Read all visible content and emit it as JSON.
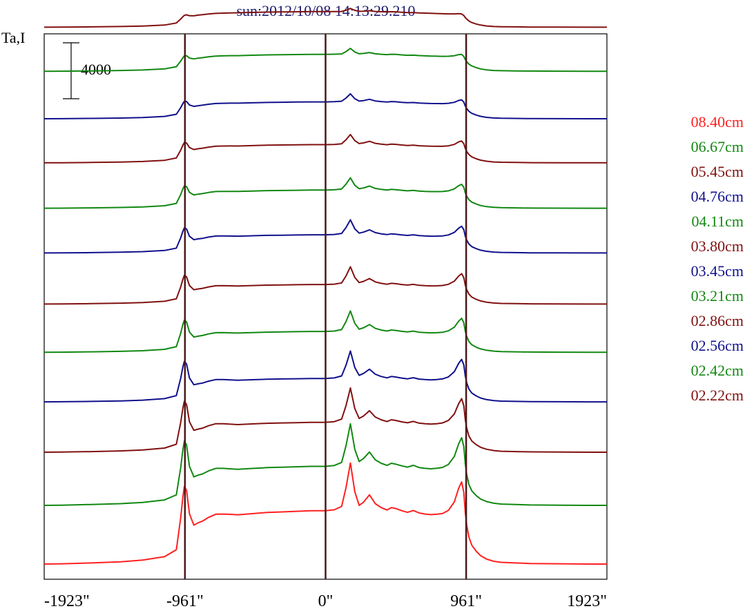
{
  "chart_data": {
    "type": "line",
    "title": "sun:2012/10/08 14:13:29.210",
    "ylabel": "Ta,I",
    "scale_bar_label": "4000",
    "x_ticks": [
      "-1923\"",
      "-961\"",
      "0\"",
      "961\"",
      "1923\""
    ],
    "x_tick_values": [
      -1923,
      -961,
      0,
      961,
      1923
    ],
    "xlim": [
      -1923,
      1923
    ],
    "vertical_markers": [
      -961,
      0,
      961
    ],
    "scale_bar_value": 4000,
    "curve_shape_x": [
      -1923,
      -1800,
      -1600,
      -1400,
      -1250,
      -1100,
      -1020,
      -990,
      -975,
      -965,
      -950,
      -930,
      -900,
      -870,
      -840,
      -800,
      -750,
      -700,
      -650,
      -600,
      -500,
      -400,
      -300,
      -200,
      -100,
      0,
      60,
      110,
      140,
      170,
      200,
      230,
      260,
      300,
      340,
      380,
      420,
      450,
      480,
      520,
      560,
      600,
      640,
      680,
      720,
      760,
      800,
      840,
      880,
      910,
      930,
      945,
      955,
      965,
      980,
      1000,
      1030,
      1060,
      1100,
      1150,
      1200,
      1300,
      1400,
      1600,
      1800,
      1923
    ],
    "curve_shape_base": [
      0,
      0.005,
      0.02,
      0.04,
      0.07,
      0.13,
      0.25,
      0.38,
      0.45,
      0.5,
      0.56,
      0.62,
      0.68,
      0.72,
      0.75,
      0.78,
      0.81,
      0.83,
      0.85,
      0.86,
      0.88,
      0.9,
      0.91,
      0.92,
      0.93,
      0.93,
      0.93,
      0.92,
      0.91,
      0.91,
      0.92,
      0.92,
      0.91,
      0.91,
      0.9,
      0.9,
      0.9,
      0.9,
      0.9,
      0.88,
      0.86,
      0.85,
      0.84,
      0.83,
      0.82,
      0.8,
      0.78,
      0.75,
      0.7,
      0.64,
      0.58,
      0.52,
      0.47,
      0.42,
      0.34,
      0.26,
      0.18,
      0.12,
      0.07,
      0.04,
      0.03,
      0.02,
      0.01,
      0.005,
      0,
      0
    ],
    "curve_shape_bump": [
      0,
      0,
      0,
      0,
      0,
      0,
      0,
      0.5,
      0.85,
      1.0,
      0.85,
      0.3,
      0,
      0,
      0,
      0.04,
      0.07,
      0.05,
      0.02,
      0,
      0,
      0,
      0,
      0,
      0,
      0,
      0.02,
      0.1,
      0.5,
      1.0,
      0.4,
      0.12,
      0.2,
      0.35,
      0.18,
      0.1,
      0.05,
      0.1,
      0.08,
      0.06,
      0.05,
      0.1,
      0.06,
      0.05,
      0.05,
      0.08,
      0.12,
      0.22,
      0.45,
      0.8,
      1.0,
      0.85,
      0.5,
      0.3,
      0.15,
      0.08,
      0.05,
      0.03,
      0.02,
      0.01,
      0,
      0,
      0,
      0,
      0,
      0
    ],
    "series": [
      {
        "name": "08.40cm",
        "color": "#ff2020",
        "baseline": -50,
        "height": 4100,
        "peak": 3500
      },
      {
        "name": "06.67cm",
        "color": "#118811",
        "baseline": 4150,
        "height": 3000,
        "peak": 3100
      },
      {
        "name": "05.45cm",
        "color": "#801010",
        "baseline": 7950,
        "height": 2300,
        "peak": 2500
      },
      {
        "name": "04.76cm",
        "color": "#10108c",
        "baseline": 11550,
        "height": 1800,
        "peak": 2000
      },
      {
        "name": "04.11cm",
        "color": "#118811",
        "baseline": 15100,
        "height": 1600,
        "peak": 1500
      },
      {
        "name": "03.80cm",
        "color": "#801010",
        "baseline": 18550,
        "height": 1500,
        "peak": 1300
      },
      {
        "name": "03.45cm",
        "color": "#10108c",
        "baseline": 22200,
        "height": 1400,
        "peak": 1100
      },
      {
        "name": "03.21cm",
        "color": "#118811",
        "baseline": 25400,
        "height": 1400,
        "peak": 900
      },
      {
        "name": "02.86cm",
        "color": "#801010",
        "baseline": 28650,
        "height": 1400,
        "peak": 750
      },
      {
        "name": "02.56cm",
        "color": "#10108c",
        "baseline": 31800,
        "height": 1300,
        "peak": 600
      },
      {
        "name": "02.42cm",
        "color": "#118811",
        "baseline": 35200,
        "height": 1300,
        "peak": 450
      },
      {
        "name": "02.22cm",
        "color": "#801010",
        "baseline": 38350,
        "height": 1200,
        "peak": 250
      }
    ]
  }
}
